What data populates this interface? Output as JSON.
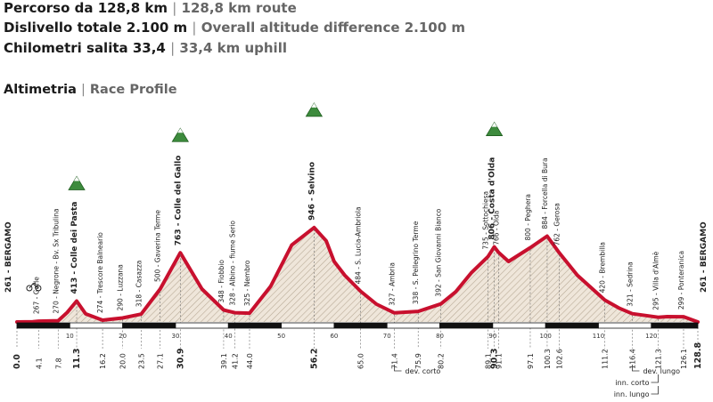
{
  "header": {
    "route_it": "Percorso da 128,8 km",
    "route_en": "128,8 km route",
    "altitude_it": "Dislivello totale 2.100 m",
    "altitude_en": "Overall altitude difference 2.100 m",
    "uphill_it": "Chilometri salita 33,4",
    "uphill_en": "33,4 km uphill",
    "profile_it": "Altimetria",
    "profile_en": "Race Profile",
    "separator": "|"
  },
  "colors": {
    "profile_line": "#c8102e",
    "hatch": "#b9ab98",
    "fill": "#efe6da",
    "summit_green": "#3d8b3d",
    "bar": "#111111"
  },
  "chart_data": {
    "type": "area",
    "title": "",
    "xlabel": "",
    "ylabel": "",
    "xlim": [
      0,
      128.8
    ],
    "ylim": [
      0,
      1100
    ],
    "profile": [
      [
        0,
        261
      ],
      [
        3,
        262
      ],
      [
        4.1,
        267
      ],
      [
        7.8,
        270
      ],
      [
        9.5,
        330
      ],
      [
        11.3,
        413
      ],
      [
        13,
        320
      ],
      [
        16.2,
        274
      ],
      [
        20,
        290
      ],
      [
        23.5,
        318
      ],
      [
        27.1,
        500
      ],
      [
        30.9,
        763
      ],
      [
        35,
        500
      ],
      [
        39.1,
        348
      ],
      [
        41.2,
        328
      ],
      [
        44,
        325
      ],
      [
        48,
        520
      ],
      [
        52,
        820
      ],
      [
        56.2,
        946
      ],
      [
        58.5,
        850
      ],
      [
        60,
        700
      ],
      [
        62,
        600
      ],
      [
        65,
        484
      ],
      [
        68,
        390
      ],
      [
        71.4,
        327
      ],
      [
        75.9,
        338
      ],
      [
        80.2,
        392
      ],
      [
        83,
        480
      ],
      [
        86,
        620
      ],
      [
        89.1,
        735
      ],
      [
        90.3,
        806
      ],
      [
        91.1,
        766
      ],
      [
        93,
        700
      ],
      [
        97.1,
        800
      ],
      [
        100.3,
        884
      ],
      [
        102.6,
        762
      ],
      [
        106,
        600
      ],
      [
        111.2,
        420
      ],
      [
        114,
        360
      ],
      [
        116.4,
        321
      ],
      [
        121.3,
        295
      ],
      [
        123,
        300
      ],
      [
        126.1,
        299
      ],
      [
        128.8,
        261
      ]
    ],
    "summits": [
      11.3,
      30.9,
      56.2,
      90.3
    ],
    "bike_at": 1,
    "places": [
      {
        "km": 0,
        "label": "261 - BERGAMO",
        "bold": true
      },
      {
        "km": 4.1,
        "label": "267 - Gorle"
      },
      {
        "km": 7.8,
        "label": "270 - Negrone - Bv. Sx Tribulina"
      },
      {
        "km": 11.3,
        "label": "413 - Colle dei Pasta",
        "bold": true
      },
      {
        "km": 16.2,
        "label": "274 - Trescore Balneario"
      },
      {
        "km": 20.0,
        "label": "290 - Luzzana"
      },
      {
        "km": 23.5,
        "label": "318 - Casazza"
      },
      {
        "km": 27.1,
        "label": "500 - Gaverina Terme"
      },
      {
        "km": 30.9,
        "label": "763 - Colle del Gallo",
        "bold": true
      },
      {
        "km": 39.1,
        "label": "348 - Fiobbio"
      },
      {
        "km": 41.2,
        "label": "328 - Albino - fiume Serio"
      },
      {
        "km": 44.0,
        "label": "325 - Nembro"
      },
      {
        "km": 56.2,
        "label": "946 - Selvino",
        "bold": true
      },
      {
        "km": 65.0,
        "label": "484 - S. Lucia-Ambriola"
      },
      {
        "km": 71.4,
        "label": "327 - Ambria"
      },
      {
        "km": 75.9,
        "label": "338 - S. Pellegrino Terme"
      },
      {
        "km": 80.2,
        "label": "392 - San Giovanni Bianco"
      },
      {
        "km": 89.1,
        "label": "735 - Sottochiesa"
      },
      {
        "km": 90.3,
        "label": "806 - Costa d'Olda",
        "bold": true
      },
      {
        "km": 91.1,
        "label": "766 - Olda"
      },
      {
        "km": 97.1,
        "label": "800 - Peghera"
      },
      {
        "km": 100.3,
        "label": "884 - Forcella di Bura"
      },
      {
        "km": 102.6,
        "label": "762 - Gerosa"
      },
      {
        "km": 111.2,
        "label": "420 - Brembilla"
      },
      {
        "km": 116.4,
        "label": "321 - Sedrina"
      },
      {
        "km": 121.3,
        "label": "295 - Villa d'Almè"
      },
      {
        "km": 126.1,
        "label": "299 - Ponteranica"
      },
      {
        "km": 128.8,
        "label": "261 - BERGAMO",
        "bold": true
      }
    ],
    "km_labels": [
      "0.0",
      "4.1",
      "7.8",
      "11.3",
      "16.2",
      "20.0",
      "23.5",
      "27.1",
      "30.9",
      "39.1",
      "41.2",
      "44.0",
      "56.2",
      "65.0",
      "71.4",
      "75.9",
      "80.2",
      "89.1",
      "90.3",
      "91.1",
      "97.1",
      "100.3",
      "102.6",
      "111.2",
      "116.4",
      "121.3",
      "126.1",
      "128.8"
    ],
    "km_bold": [
      "0.0",
      "11.3",
      "30.9",
      "56.2",
      "90.3",
      "128.8"
    ],
    "scale_ticks": [
      10,
      20,
      30,
      40,
      50,
      60,
      70,
      80,
      90,
      100,
      110,
      120
    ],
    "notes": [
      {
        "km": 71.4,
        "label": "dev. corto"
      },
      {
        "km": 116.4,
        "label": "dev. lungo"
      },
      {
        "km": 121.3,
        "label": "inn. corto"
      },
      {
        "km": 121.3,
        "label": "inn. lungo"
      }
    ]
  }
}
